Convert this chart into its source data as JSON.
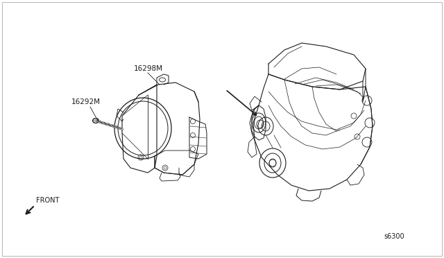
{
  "bg_color": "#ffffff",
  "border_color": "#bbbbbb",
  "line_color": "#1a1a1a",
  "part_number_1": "16292M",
  "part_number_2": "16298M",
  "part_number_3": "s6300",
  "front_label": "FRONT",
  "fig_width": 6.4,
  "fig_height": 3.72,
  "dpi": 100
}
